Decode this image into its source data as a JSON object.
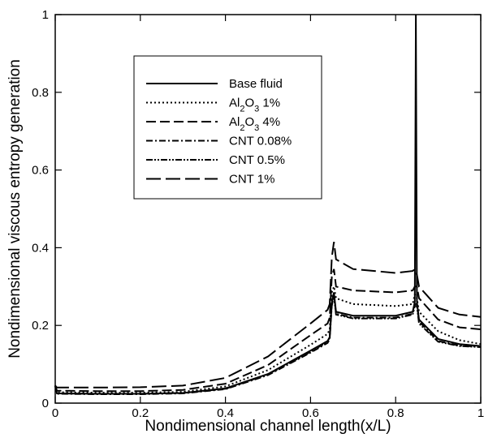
{
  "chart_data": {
    "type": "line",
    "title": "",
    "xlabel": "Nondimensional channel length(x/L)",
    "ylabel": "Nondimensional viscous entropy generation",
    "xlim": [
      0,
      1
    ],
    "ylim": [
      0,
      1
    ],
    "x_ticks": [
      "0",
      "0.2",
      "0.4",
      "0.6",
      "0.8",
      "1"
    ],
    "y_ticks": [
      "0",
      "0.2",
      "0.4",
      "0.6",
      "0.8",
      "1"
    ],
    "grid": false,
    "legend_position": "upper-left-center",
    "series": [
      {
        "name": "Base fluid",
        "label_parts": [
          {
            "t": "Base fluid"
          }
        ],
        "dash": "solid",
        "points": [
          [
            0,
            0.045
          ],
          [
            0.004,
            0.025
          ],
          [
            0.1,
            0.024
          ],
          [
            0.2,
            0.024
          ],
          [
            0.3,
            0.026
          ],
          [
            0.4,
            0.038
          ],
          [
            0.5,
            0.075
          ],
          [
            0.6,
            0.135
          ],
          [
            0.64,
            0.16
          ],
          [
            0.645,
            0.17
          ],
          [
            0.65,
            0.26
          ],
          [
            0.655,
            0.285
          ],
          [
            0.66,
            0.235
          ],
          [
            0.7,
            0.225
          ],
          [
            0.8,
            0.225
          ],
          [
            0.84,
            0.235
          ],
          [
            0.845,
            0.26
          ],
          [
            0.8475,
            1.0
          ],
          [
            0.85,
            0.26
          ],
          [
            0.855,
            0.215
          ],
          [
            0.9,
            0.165
          ],
          [
            0.95,
            0.152
          ],
          [
            1.0,
            0.147
          ]
        ]
      },
      {
        "name": "Al2O3 1%",
        "label_parts": [
          {
            "t": "Al"
          },
          {
            "t": "2",
            "sub": true
          },
          {
            "t": "O"
          },
          {
            "t": "3",
            "sub": true
          },
          {
            "t": " 1%"
          }
        ],
        "dash": "2,3",
        "points": [
          [
            0,
            0.045
          ],
          [
            0.004,
            0.028
          ],
          [
            0.1,
            0.027
          ],
          [
            0.2,
            0.027
          ],
          [
            0.3,
            0.029
          ],
          [
            0.4,
            0.043
          ],
          [
            0.5,
            0.085
          ],
          [
            0.6,
            0.15
          ],
          [
            0.64,
            0.178
          ],
          [
            0.645,
            0.19
          ],
          [
            0.65,
            0.285
          ],
          [
            0.655,
            0.3
          ],
          [
            0.66,
            0.27
          ],
          [
            0.7,
            0.255
          ],
          [
            0.8,
            0.25
          ],
          [
            0.84,
            0.255
          ],
          [
            0.845,
            0.28
          ],
          [
            0.85,
            0.27
          ],
          [
            0.855,
            0.235
          ],
          [
            0.9,
            0.185
          ],
          [
            0.95,
            0.162
          ],
          [
            1.0,
            0.152
          ]
        ]
      },
      {
        "name": "Al2O3 4%",
        "label_parts": [
          {
            "t": "Al"
          },
          {
            "t": "2",
            "sub": true
          },
          {
            "t": "O"
          },
          {
            "t": "3",
            "sub": true
          },
          {
            "t": " 4%"
          }
        ],
        "dash": "12,5",
        "points": [
          [
            0,
            0.045
          ],
          [
            0.004,
            0.032
          ],
          [
            0.1,
            0.031
          ],
          [
            0.2,
            0.031
          ],
          [
            0.3,
            0.034
          ],
          [
            0.4,
            0.05
          ],
          [
            0.5,
            0.098
          ],
          [
            0.6,
            0.175
          ],
          [
            0.64,
            0.205
          ],
          [
            0.645,
            0.22
          ],
          [
            0.65,
            0.325
          ],
          [
            0.655,
            0.345
          ],
          [
            0.66,
            0.3
          ],
          [
            0.7,
            0.29
          ],
          [
            0.8,
            0.285
          ],
          [
            0.84,
            0.29
          ],
          [
            0.845,
            0.3
          ],
          [
            0.85,
            0.3
          ],
          [
            0.855,
            0.27
          ],
          [
            0.9,
            0.215
          ],
          [
            0.95,
            0.195
          ],
          [
            1.0,
            0.19
          ]
        ]
      },
      {
        "name": "CNT 0.08%",
        "label_parts": [
          {
            "t": "CNT 0.08%"
          }
        ],
        "dash": "8,3,2,3",
        "points": [
          [
            0,
            0.045
          ],
          [
            0.004,
            0.024
          ],
          [
            0.1,
            0.023
          ],
          [
            0.2,
            0.023
          ],
          [
            0.3,
            0.025
          ],
          [
            0.4,
            0.036
          ],
          [
            0.5,
            0.072
          ],
          [
            0.6,
            0.13
          ],
          [
            0.64,
            0.155
          ],
          [
            0.645,
            0.165
          ],
          [
            0.65,
            0.25
          ],
          [
            0.655,
            0.28
          ],
          [
            0.66,
            0.23
          ],
          [
            0.7,
            0.22
          ],
          [
            0.8,
            0.22
          ],
          [
            0.84,
            0.23
          ],
          [
            0.845,
            0.255
          ],
          [
            0.85,
            0.255
          ],
          [
            0.855,
            0.21
          ],
          [
            0.9,
            0.16
          ],
          [
            0.95,
            0.148
          ],
          [
            1.0,
            0.145
          ]
        ]
      },
      {
        "name": "CNT 0.5%",
        "label_parts": [
          {
            "t": "CNT 0.5%"
          }
        ],
        "dash": "8,2,2,2,2,2",
        "points": [
          [
            0,
            0.045
          ],
          [
            0.004,
            0.025
          ],
          [
            0.1,
            0.024
          ],
          [
            0.2,
            0.024
          ],
          [
            0.3,
            0.026
          ],
          [
            0.4,
            0.037
          ],
          [
            0.5,
            0.074
          ],
          [
            0.6,
            0.132
          ],
          [
            0.64,
            0.158
          ],
          [
            0.645,
            0.168
          ],
          [
            0.65,
            0.255
          ],
          [
            0.655,
            0.275
          ],
          [
            0.66,
            0.228
          ],
          [
            0.7,
            0.218
          ],
          [
            0.8,
            0.218
          ],
          [
            0.84,
            0.228
          ],
          [
            0.845,
            0.25
          ],
          [
            0.85,
            0.25
          ],
          [
            0.855,
            0.205
          ],
          [
            0.9,
            0.158
          ],
          [
            0.95,
            0.147
          ],
          [
            1.0,
            0.144
          ]
        ]
      },
      {
        "name": "CNT 1%",
        "label_parts": [
          {
            "t": "CNT 1%"
          }
        ],
        "dash": "18,6",
        "points": [
          [
            0,
            0.045
          ],
          [
            0.004,
            0.04
          ],
          [
            0.1,
            0.04
          ],
          [
            0.2,
            0.041
          ],
          [
            0.3,
            0.045
          ],
          [
            0.4,
            0.065
          ],
          [
            0.5,
            0.12
          ],
          [
            0.6,
            0.205
          ],
          [
            0.64,
            0.24
          ],
          [
            0.645,
            0.255
          ],
          [
            0.65,
            0.375
          ],
          [
            0.655,
            0.415
          ],
          [
            0.66,
            0.37
          ],
          [
            0.7,
            0.345
          ],
          [
            0.8,
            0.335
          ],
          [
            0.84,
            0.34
          ],
          [
            0.845,
            0.345
          ],
          [
            0.85,
            0.33
          ],
          [
            0.855,
            0.3
          ],
          [
            0.9,
            0.245
          ],
          [
            0.95,
            0.228
          ],
          [
            1.0,
            0.222
          ]
        ]
      }
    ]
  }
}
